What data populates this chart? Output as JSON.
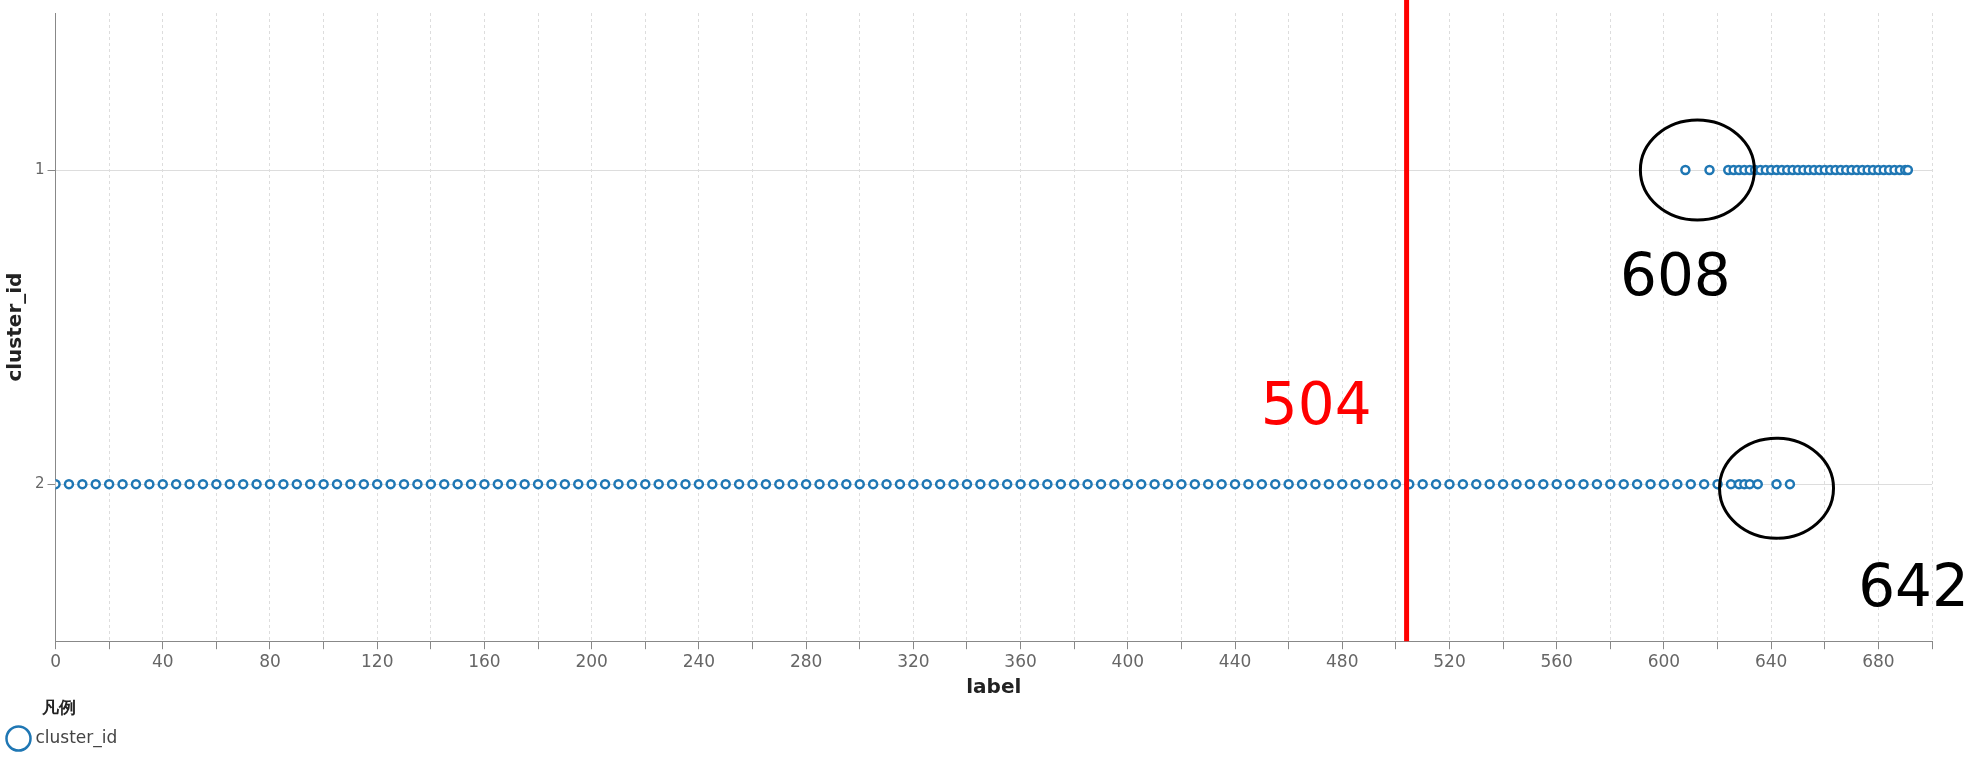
{
  "chart_data": {
    "type": "scatter",
    "xlabel": "label",
    "ylabel": "cluster_id",
    "legend_title": "凡例",
    "legend": "bottom left",
    "marker": "circle",
    "grid": true,
    "xlim": [
      0,
      700
    ],
    "xticks": [
      0,
      {
        "value": 20,
        "label": null
      },
      40,
      {
        "value": 60,
        "label": null
      },
      80,
      {
        "value": 100,
        "label": null
      },
      120,
      {
        "value": 140,
        "label": null
      },
      160,
      {
        "value": 180,
        "label": null
      },
      200,
      {
        "value": 220,
        "label": null
      },
      240,
      {
        "value": 260,
        "label": null
      },
      280,
      {
        "value": 300,
        "label": null
      },
      320,
      {
        "value": 340,
        "label": null
      },
      360,
      {
        "value": 380,
        "label": null
      },
      400,
      {
        "value": 420,
        "label": null
      },
      440,
      {
        "value": 460,
        "label": null
      },
      480,
      {
        "value": 500,
        "label": null
      },
      520,
      {
        "value": 540,
        "label": null
      },
      560,
      {
        "value": 580,
        "label": null
      },
      600,
      {
        "value": 620,
        "label": null
      },
      640,
      {
        "value": 660,
        "label": null
      },
      680,
      {
        "value": 700,
        "label": null
      }
    ],
    "ylim": [
      2.5,
      0.5
    ],
    "yticks": [
      1,
      2
    ],
    "series": [
      {
        "name": "cluster_id",
        "color": "#1f77b4",
        "x": [
          0,
          5,
          10,
          15,
          20,
          25,
          30,
          35,
          40,
          45,
          50,
          55,
          60,
          65,
          70,
          75,
          80,
          85,
          90,
          95,
          100,
          105,
          110,
          115,
          120,
          125,
          130,
          135,
          140,
          145,
          150,
          155,
          160,
          165,
          170,
          175,
          180,
          185,
          190,
          195,
          200,
          205,
          210,
          215,
          220,
          225,
          230,
          235,
          240,
          245,
          250,
          255,
          260,
          265,
          270,
          275,
          280,
          285,
          290,
          295,
          300,
          305,
          310,
          315,
          320,
          325,
          330,
          335,
          340,
          345,
          350,
          355,
          360,
          365,
          370,
          375,
          380,
          385,
          390,
          395,
          400,
          405,
          410,
          415,
          420,
          425,
          430,
          435,
          440,
          445,
          450,
          455,
          460,
          465,
          470,
          475,
          480,
          485,
          490,
          495,
          500,
          505,
          510,
          515,
          520,
          525,
          530,
          535,
          540,
          545,
          550,
          555,
          560,
          565,
          570,
          575,
          580,
          585,
          590,
          595,
          600,
          605,
          610,
          615,
          620,
          625,
          628,
          630,
          632,
          635,
          642,
          647,
          608,
          617,
          624,
          626,
          628,
          630,
          632,
          634,
          636,
          638,
          640,
          642,
          644,
          646,
          648,
          650,
          652,
          654,
          656,
          658,
          660,
          662,
          664,
          666,
          668,
          670,
          672,
          674,
          676,
          678,
          680,
          682,
          684,
          686,
          688,
          690,
          691
        ],
        "values": [
          2,
          2,
          2,
          2,
          2,
          2,
          2,
          2,
          2,
          2,
          2,
          2,
          2,
          2,
          2,
          2,
          2,
          2,
          2,
          2,
          2,
          2,
          2,
          2,
          2,
          2,
          2,
          2,
          2,
          2,
          2,
          2,
          2,
          2,
          2,
          2,
          2,
          2,
          2,
          2,
          2,
          2,
          2,
          2,
          2,
          2,
          2,
          2,
          2,
          2,
          2,
          2,
          2,
          2,
          2,
          2,
          2,
          2,
          2,
          2,
          2,
          2,
          2,
          2,
          2,
          2,
          2,
          2,
          2,
          2,
          2,
          2,
          2,
          2,
          2,
          2,
          2,
          2,
          2,
          2,
          2,
          2,
          2,
          2,
          2,
          2,
          2,
          2,
          2,
          2,
          2,
          2,
          2,
          2,
          2,
          2,
          2,
          2,
          2,
          2,
          2,
          2,
          2,
          2,
          2,
          2,
          2,
          2,
          2,
          2,
          2,
          2,
          2,
          2,
          2,
          2,
          2,
          2,
          2,
          2,
          2,
          2,
          2,
          2,
          2,
          2,
          2,
          2,
          2,
          2,
          2,
          2,
          1,
          1,
          1,
          1,
          1,
          1,
          1,
          1,
          1,
          1,
          1,
          1,
          1,
          1,
          1,
          1,
          1,
          1,
          1,
          1,
          1,
          1,
          1,
          1,
          1,
          1,
          1,
          1,
          1,
          1,
          1,
          1,
          1,
          1,
          1,
          1,
          1
        ]
      }
    ],
    "ref_lines": [
      {
        "axis": "x",
        "value": 504,
        "label": "504",
        "color": "#ff0000"
      }
    ],
    "annotations": [
      {
        "text": "608",
        "x": 608,
        "y": 1
      },
      {
        "text": "642",
        "x": 642,
        "y": 2
      }
    ]
  }
}
